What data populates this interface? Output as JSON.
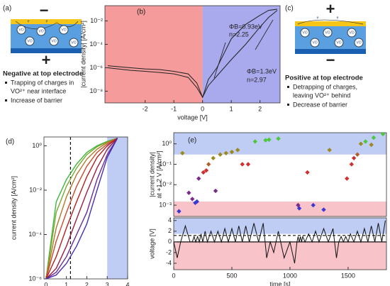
{
  "chart_data": [
    {
      "type": "line",
      "label": "(b)",
      "xlabel": "voltage [V]",
      "ylabel": [
        "|current density| [A/cm²]"
      ],
      "annotations": [
        "ΦB=0.93eV",
        "n=2.25",
        "ΦB=1.3eV",
        "n=2.97"
      ],
      "xlim": [
        -3.4,
        2.7
      ],
      "xticks": [
        -2,
        -1,
        0,
        1,
        2
      ],
      "ylim": [
        1e-09,
        0.2
      ],
      "ylog": true,
      "yticks": [
        {
          "value": 0.01,
          "label": "10⁻²"
        },
        {
          "value": 0.0001,
          "label": "10⁻⁴"
        },
        {
          "value": 1e-06,
          "label": "10⁻⁶"
        },
        {
          "value": 1e-08,
          "label": "10⁻⁸"
        }
      ],
      "shades": [
        {
          "axis": "x",
          "range": [
            -3.4,
            0
          ],
          "color": "#f27a7a"
        },
        {
          "axis": "x",
          "range": [
            0,
            2.7
          ],
          "color": "#8c8ce8"
        }
      ],
      "x": [
        -3.3,
        -2.5,
        -2,
        -1.5,
        -1,
        -0.5,
        -0.2,
        0,
        0.2,
        0.5,
        1,
        1.5,
        2,
        2.3,
        2.6
      ],
      "series": [
        {
          "color": "#222222",
          "values": [
            1.5e-06,
            1e-06,
            8e-07,
            7e-07,
            5e-07,
            3e-07,
            5e-08,
            3e-09,
            1e-07,
            1e-06,
            0.0003,
            0.005,
            0.03,
            0.08,
            0.1
          ]
        },
        {
          "color": "#222222",
          "values": [
            1e-06,
            6e-07,
            5e-07,
            4e-07,
            3e-07,
            1.5e-07,
            2e-08,
            3e-09,
            3e-08,
            2e-07,
            5e-06,
            0.0001,
            0.003,
            0.02,
            0.08
          ]
        }
      ]
    },
    {
      "type": "line",
      "label": "(d)",
      "xlabel": "voltage [V]",
      "ylabel": [
        "current density [A/cm²]"
      ],
      "xlim": [
        -0.1,
        4
      ],
      "xticks": [
        0,
        1,
        2,
        3,
        4
      ],
      "ylim": [
        1e-06,
        2.5
      ],
      "ylog": true,
      "yticks": [
        {
          "value": 1,
          "label": "10⁰"
        },
        {
          "value": 0.01,
          "label": "10⁻²"
        },
        {
          "value": 0.0001,
          "label": "10⁻⁴"
        },
        {
          "value": 1e-06,
          "label": "10⁻⁶"
        }
      ],
      "shades": [
        {
          "axis": "x",
          "range": [
            3,
            4
          ],
          "color": "#aabbf0"
        }
      ],
      "reflines": [
        {
          "axis": "x",
          "value": 1.2,
          "dash": true
        }
      ],
      "x": [
        0,
        0.5,
        1,
        1.5,
        2,
        2.5,
        3,
        3.5
      ],
      "series": [
        {
          "color": "#3cb83c",
          "values": [
            1e-06,
            0.003,
            0.03,
            0.15,
            0.5,
            1,
            1.6,
            2.2
          ]
        },
        {
          "color": "#7aa830",
          "values": [
            1e-06,
            0.001,
            0.015,
            0.1,
            0.4,
            0.9,
            1.5,
            2.2
          ]
        },
        {
          "color": "#b07a28",
          "values": [
            1e-06,
            0.0002,
            0.005,
            0.05,
            0.25,
            0.7,
            1.4,
            2.2
          ]
        },
        {
          "color": "#c84a2a",
          "values": [
            1e-06,
            5e-05,
            0.001,
            0.015,
            0.12,
            0.5,
            1.2,
            2.2
          ]
        },
        {
          "color": "#b52020",
          "values": [
            1e-06,
            1e-05,
            0.0002,
            0.003,
            0.04,
            0.3,
            1,
            2.2
          ]
        },
        {
          "color": "#9a2040",
          "values": [
            1e-06,
            3e-06,
            3e-05,
            0.0005,
            0.008,
            0.1,
            0.7,
            2.2
          ]
        },
        {
          "color": "#6a2a9a",
          "values": [
            1e-06,
            2e-06,
            1e-05,
            0.0001,
            0.001,
            0.03,
            0.4,
            2.2
          ]
        },
        {
          "color": "#4a30b0",
          "values": [
            1e-06,
            1.5e-06,
            5e-06,
            3e-05,
            0.0003,
            0.01,
            0.3,
            2.2
          ]
        }
      ]
    },
    {
      "type": "scatter",
      "label": "(e)",
      "ylabel": [
        "|current density|",
        "at +1.2 V [A/cm²]"
      ],
      "xlim": [
        0,
        1830
      ],
      "ylim": [
        0.00028,
        3.5
      ],
      "ylog": true,
      "yticks": [
        {
          "value": 1,
          "label": "10⁰"
        },
        {
          "value": 0.1,
          "label": "10⁻¹"
        },
        {
          "value": 0.01,
          "label": "10⁻²"
        },
        {
          "value": 0.001,
          "label": "10⁻³"
        }
      ],
      "shades": [
        {
          "axis": "y",
          "range": [
            0.3,
            3.5
          ],
          "color": "#aabbf0"
        },
        {
          "axis": "y",
          "range": [
            0.00028,
            0.0015
          ],
          "color": "#f5b0b8"
        }
      ],
      "x": [
        75,
        45,
        130,
        160,
        185,
        200,
        215,
        255,
        280,
        300,
        340,
        360,
        400,
        450,
        500,
        550,
        590,
        640,
        700,
        790,
        820,
        900,
        1070,
        1080,
        1150,
        1200,
        1290,
        1340,
        1490,
        1530,
        1550,
        1580,
        1610,
        1650,
        1700,
        1720,
        1800
      ],
      "values": [
        0.35,
        0.0005,
        0.004,
        0.002,
        0.0013,
        0.0015,
        0.02,
        0.04,
        0.05,
        0.1,
        0.2,
        0.005,
        0.3,
        0.35,
        0.4,
        0.5,
        0.1,
        0.1,
        1.3,
        1.5,
        1.6,
        1.8,
        0.001,
        0.0007,
        0.04,
        0.001,
        0.0006,
        0.5,
        0.02,
        0.1,
        0.2,
        0.3,
        1,
        1.3,
        0.9,
        2,
        3
      ],
      "colors": [
        "#9a8a20",
        "#3a3ad0",
        "#7a2a8a",
        "#7a2a8a",
        "#3a3ad0",
        "#3a3ad0",
        "#7a2a8a",
        "#d03030",
        "#d03030",
        "#b0602a",
        "#9a8a20",
        "#7a2a8a",
        "#9a8a20",
        "#9a8a20",
        "#9a8a20",
        "#9a8a20",
        "#d03030",
        "#d03030",
        "#4cc83c",
        "#4cc83c",
        "#4cc83c",
        "#4cc83c",
        "#7a2a8a",
        "#3a3ad0",
        "#d03030",
        "#3a3ad0",
        "#3a3ad0",
        "#9a8a20",
        "#d03030",
        "#d03030",
        "#d03030",
        "#b0602a",
        "#9a8a20",
        "#4cc83c",
        "#9a8a20",
        "#4cc83c",
        "#4cc83c"
      ]
    },
    {
      "type": "line",
      "xlabel": "time [s]",
      "ylabel": [
        "voltage [V]"
      ],
      "xlim": [
        0,
        1830
      ],
      "xticks": [
        0,
        500,
        1000,
        1500
      ],
      "ylim": [
        -5.2,
        4.5
      ],
      "yticks": [
        4,
        2,
        0,
        -2,
        -4
      ],
      "shades": [
        {
          "axis": "y",
          "range": [
            1.5,
            4.5
          ],
          "color": "#aabbf0"
        },
        {
          "axis": "y",
          "range": [
            -5.2,
            0
          ],
          "color": "#f5b0b8"
        }
      ],
      "reflines": [
        {
          "axis": "y",
          "value": 1.2,
          "dash": true
        },
        {
          "axis": "y",
          "value": 0,
          "dash": false
        }
      ],
      "x": [
        0,
        30,
        60,
        100,
        140,
        160,
        175,
        190,
        205,
        220,
        235,
        250,
        270,
        290,
        320,
        350,
        380,
        410,
        440,
        470,
        500,
        530,
        560,
        590,
        620,
        650,
        690,
        730,
        770,
        800,
        830,
        860,
        900,
        950,
        1000,
        1040,
        1060,
        1070,
        1080,
        1090,
        1100,
        1110,
        1130,
        1160,
        1190,
        1220,
        1250,
        1290,
        1330,
        1370,
        1400,
        1420,
        1440,
        1460,
        1480,
        1500,
        1520,
        1550,
        1580,
        1610,
        1640,
        1670,
        1700,
        1730,
        1760,
        1790,
        1820
      ],
      "series": [
        {
          "color": "#111111",
          "values": [
            0,
            -3,
            0,
            3,
            0,
            0,
            1,
            0,
            1,
            0,
            1.5,
            0,
            2,
            0,
            2,
            0,
            2,
            0,
            2.5,
            0,
            2.5,
            0,
            3,
            0,
            3,
            0,
            3.5,
            0,
            3.5,
            -3,
            0,
            -2,
            2,
            -3,
            0,
            -4,
            0,
            1,
            0,
            1,
            0,
            1,
            0,
            1.5,
            0,
            2,
            0,
            2.5,
            0,
            2.5,
            -3,
            0,
            1,
            0,
            1,
            0,
            1.5,
            0,
            2,
            0,
            2.5,
            0,
            3,
            0,
            3.5,
            0,
            4
          ]
        }
      ]
    }
  ],
  "diagrams": [
    {
      "label": "(a)",
      "top_sign": "−",
      "bottom_sign": "+",
      "vacancy": "VO",
      "electron": "e",
      "title": "Negative at top electrode",
      "bullets": [
        [
          "Trapping of charges in",
          "VO²⁺ near interface"
        ],
        [
          "Increase of barrier"
        ]
      ]
    },
    {
      "label": "(c)",
      "top_sign": "+",
      "bottom_sign": "−",
      "vacancy": "VO",
      "electron": "e",
      "title": "Positive at top electrode",
      "bullets": [
        [
          "Detrapping of charges,",
          "leaving VO²⁺ behind"
        ],
        [
          "Decrease of barrier"
        ]
      ]
    }
  ]
}
